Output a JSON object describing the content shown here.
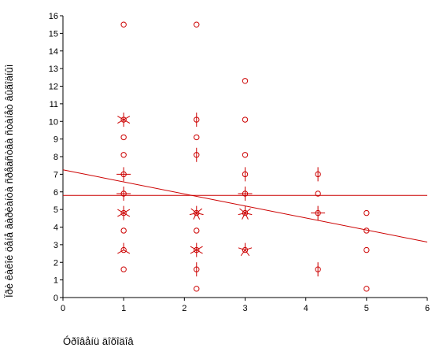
{
  "chart_data": {
    "type": "scatter",
    "xlabel": "Óðîâåíü äîõîäîâ",
    "ylabel": "Ïðè êàêîé öåíå âàðèàíòà ñðåäñòâà ñòàíåò âûãîäíûì",
    "xlim": [
      0,
      6
    ],
    "ylim": [
      0,
      16
    ],
    "xticks": [
      "0",
      "1",
      "2",
      "3",
      "4",
      "5",
      "6"
    ],
    "yticks": [
      "0",
      "1",
      "2",
      "3",
      "4",
      "5",
      "6",
      "7",
      "8",
      "9",
      "10",
      "11",
      "12",
      "13",
      "14",
      "15",
      "16"
    ],
    "grid": false,
    "marker_color": "#cc0000",
    "points": [
      {
        "x": 1,
        "y": 15.5,
        "n": 1
      },
      {
        "x": 1,
        "y": 10.1,
        "n": 6
      },
      {
        "x": 1,
        "y": 9.1,
        "n": 1
      },
      {
        "x": 1,
        "y": 8.1,
        "n": 1
      },
      {
        "x": 1,
        "y": 7.0,
        "n": 4
      },
      {
        "x": 1,
        "y": 5.9,
        "n": 4
      },
      {
        "x": 1,
        "y": 4.8,
        "n": 6
      },
      {
        "x": 1,
        "y": 3.8,
        "n": 1
      },
      {
        "x": 1,
        "y": 2.7,
        "n": 3
      },
      {
        "x": 1,
        "y": 1.6,
        "n": 1
      },
      {
        "x": 2.2,
        "y": 15.5,
        "n": 1
      },
      {
        "x": 2.2,
        "y": 10.1,
        "n": 2
      },
      {
        "x": 2.2,
        "y": 9.1,
        "n": 1
      },
      {
        "x": 2.2,
        "y": 8.1,
        "n": 2
      },
      {
        "x": 2.2,
        "y": 4.8,
        "n": 7
      },
      {
        "x": 2.2,
        "y": 3.8,
        "n": 1
      },
      {
        "x": 2.2,
        "y": 2.7,
        "n": 6
      },
      {
        "x": 2.2,
        "y": 1.6,
        "n": 2
      },
      {
        "x": 2.2,
        "y": 0.5,
        "n": 1
      },
      {
        "x": 3,
        "y": 12.3,
        "n": 1
      },
      {
        "x": 3,
        "y": 10.1,
        "n": 1
      },
      {
        "x": 3,
        "y": 8.1,
        "n": 1
      },
      {
        "x": 3,
        "y": 7.0,
        "n": 2
      },
      {
        "x": 3,
        "y": 5.9,
        "n": 4
      },
      {
        "x": 3,
        "y": 4.8,
        "n": 7
      },
      {
        "x": 3,
        "y": 2.7,
        "n": 5
      },
      {
        "x": 4.2,
        "y": 7.0,
        "n": 2
      },
      {
        "x": 4.2,
        "y": 5.9,
        "n": 1
      },
      {
        "x": 4.2,
        "y": 4.8,
        "n": 4
      },
      {
        "x": 4.2,
        "y": 1.6,
        "n": 2
      },
      {
        "x": 5,
        "y": 4.8,
        "n": 1
      },
      {
        "x": 5,
        "y": 3.8,
        "n": 1
      },
      {
        "x": 5,
        "y": 2.7,
        "n": 1
      },
      {
        "x": 5,
        "y": 0.5,
        "n": 1
      }
    ],
    "mean_line": {
      "y": 5.8
    },
    "fit_line": {
      "x": [
        0,
        6
      ],
      "y": [
        7.25,
        3.15
      ]
    }
  }
}
